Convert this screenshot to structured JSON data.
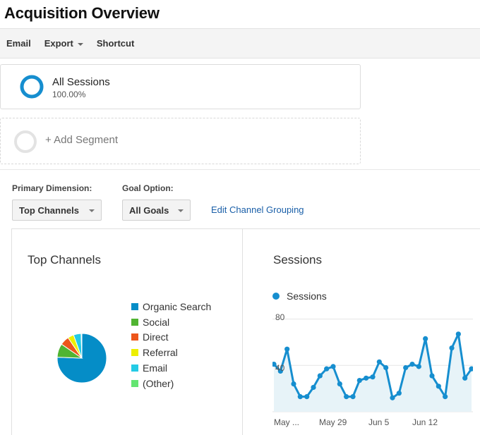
{
  "page": {
    "title": "Acquisition Overview"
  },
  "toolbar": {
    "email": "Email",
    "export": "Export",
    "shortcut": "Shortcut"
  },
  "segments": {
    "active": {
      "name": "All Sessions",
      "percent": "100.00%"
    },
    "add_label": "+ Add Segment"
  },
  "controls": {
    "primary_dimension_label": "Primary Dimension:",
    "primary_dimension_value": "Top Channels",
    "goal_option_label": "Goal Option:",
    "goal_option_value": "All Goals",
    "edit_link": "Edit Channel Grouping"
  },
  "colors": {
    "accent": "#1a5fa8",
    "series": "#168ecf",
    "ring_grey": "#e3e3e3"
  },
  "icons": {
    "segment": "donut-ring-icon",
    "add_segment": "empty-ring-icon",
    "caret": "caret-down-icon"
  },
  "top_channels": {
    "title": "Top Channels",
    "legend": [
      {
        "label": "Organic Search",
        "color": "#058dc7"
      },
      {
        "label": "Social",
        "color": "#50b432"
      },
      {
        "label": "Direct",
        "color": "#ed561b"
      },
      {
        "label": "Referral",
        "color": "#edef00"
      },
      {
        "label": "Email",
        "color": "#24cbe5"
      },
      {
        "label": "(Other)",
        "color": "#64e572"
      }
    ]
  },
  "sessions": {
    "title": "Sessions",
    "legend": "Sessions",
    "y_tick_80": "80",
    "y_tick_40": "40",
    "x_tick_may": "May ...",
    "x_tick_may29": "May 29",
    "x_tick_jun5": "Jun 5",
    "x_tick_jun12": "Jun 12"
  },
  "chart_data": [
    {
      "type": "pie",
      "title": "Top Channels",
      "categories": [
        "Organic Search",
        "Social",
        "Direct",
        "Referral",
        "Email",
        "(Other)"
      ],
      "values": [
        76,
        9,
        6,
        4,
        5,
        0.5
      ]
    },
    {
      "type": "area",
      "title": "Sessions",
      "series": [
        {
          "name": "Sessions",
          "values": [
            41,
            35,
            54,
            24,
            13,
            13,
            21,
            31,
            37,
            39,
            24,
            13,
            13,
            27,
            29,
            30,
            43,
            38,
            12,
            16,
            38,
            41,
            39,
            63,
            31,
            22,
            13,
            55,
            67,
            29,
            37
          ]
        }
      ],
      "ylim": [
        0,
        90
      ],
      "yticks": [
        40,
        80
      ],
      "xticks": [
        "May ...",
        "May 29",
        "Jun 5",
        "Jun 12"
      ],
      "grid": "horizontal"
    }
  ]
}
